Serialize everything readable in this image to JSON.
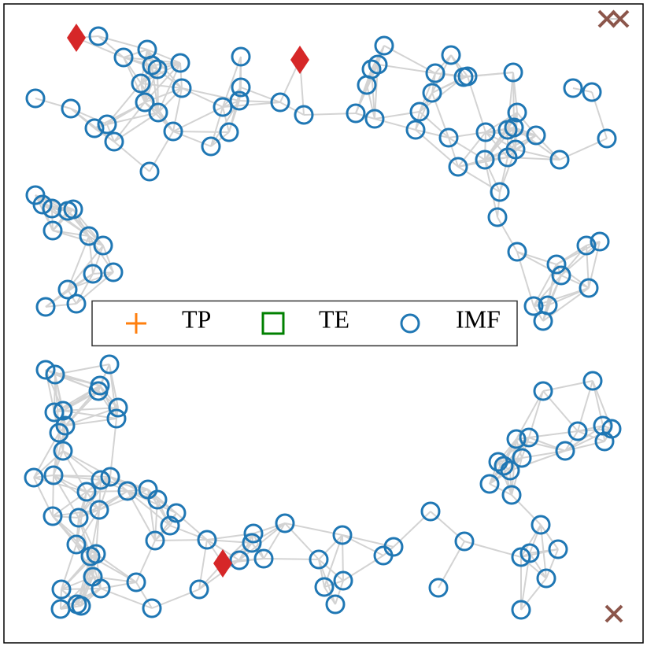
{
  "chart_data": {
    "type": "scatter",
    "xlim": [
      5,
      817
    ],
    "ylim": [
      817,
      5
    ],
    "legend": "center",
    "edge_color": "#d3d3d3",
    "series": [
      {
        "name": "TP",
        "color": "#ff7f0e",
        "marker": "plus",
        "x": [],
        "values": []
      },
      {
        "name": "TE",
        "color": "#008000",
        "marker": "square",
        "x": [],
        "values": []
      },
      {
        "name": "IMF",
        "color": "#1f77b4",
        "marker": "circle",
        "x": [
          125,
          157,
          187,
          193,
          179,
          200,
          229,
          231,
          184,
          201,
          220,
          268,
          291,
          283,
          306,
          304,
          306,
          356,
          386,
          90,
          45,
          120,
          136,
          145,
          190,
          488,
          480,
          472,
          466,
          452,
          476,
          533,
          528,
          549,
          553,
          573,
          589,
          594,
          652,
          570,
          582,
          617,
          616,
          645,
          657,
          653,
          655,
          681,
          645,
          711,
          728,
          752,
          771,
          635,
          632,
          657,
          707,
          713,
          745,
          762,
          748,
          678,
          696,
          690,
          690,
          753,
          734,
          766,
          777,
          768,
          718,
          672,
          656,
          663,
          633,
          640,
          648,
          622,
          650,
          687,
          709,
          673,
          662,
          694,
          590,
          547,
          557,
          662,
          500,
          487,
          435,
          436,
          412,
          426,
          405,
          362,
          322,
          320,
          335,
          304,
          263,
          253,
          193,
          173,
          224,
          216,
          200,
          197,
          188,
          162,
          140,
          128,
          126,
          110,
          100,
          97,
          115,
          122,
          118,
          98,
          77,
          78,
          103,
          128,
          67,
          43,
          68,
          80,
          75,
          69,
          80,
          83,
          58,
          70,
          125,
          127,
          150,
          148,
          139,
          45,
          54,
          66,
          86,
          93,
          67,
          113,
          131,
          118,
          144,
          86,
          97,
          58
        ],
        "values": [
          46,
          73,
          63,
          83,
          106,
          88,
          80,
          112,
          130,
          143,
          167,
          186,
          168,
          136,
          111,
          128,
          72,
          130,
          146,
          138,
          125,
          163,
          158,
          180,
          218,
          58,
          82,
          88,
          108,
          144,
          151,
          142,
          165,
          118,
          93,
          70,
          98,
          97,
          92,
          175,
          212,
          168,
          203,
          200,
          143,
          162,
          190,
          172,
          165,
          203,
          112,
          117,
          176,
          244,
          276,
          320,
          336,
          350,
          312,
          307,
          366,
          389,
          388,
          408,
          497,
          484,
          548,
          541,
          545,
          561,
          573,
          556,
          558,
          582,
          587,
          592,
          598,
          615,
          629,
          667,
          698,
          703,
          708,
          735,
          688,
          650,
          747,
          775,
          695,
          706,
          680,
          738,
          746,
          768,
          711,
          665,
          678,
          690,
          710,
          712,
          686,
          749,
          773,
          740,
          652,
          668,
          635,
          687,
          622,
          624,
          606,
          610,
          648,
          625,
          658,
          692,
          707,
          704,
          733,
          768,
          774,
          749,
          770,
          748,
          656,
          607,
          604,
          573,
          550,
          524,
          522,
          541,
          470,
          476,
          497,
          490,
          518,
          532,
          463,
          248,
          260,
          265,
          268,
          266,
          293,
          300,
          312,
          348,
          346,
          368,
          386,
          390
        ]
      },
      {
        "color": "#d62728",
        "marker": "diamond",
        "x": [
          97,
          381,
          283
        ],
        "values": [
          48,
          76,
          716
        ]
      },
      {
        "color": "#8c564b",
        "marker": "x",
        "x": [
          771,
          788,
          780
        ],
        "values": [
          24,
          24,
          780
        ]
      }
    ]
  }
}
